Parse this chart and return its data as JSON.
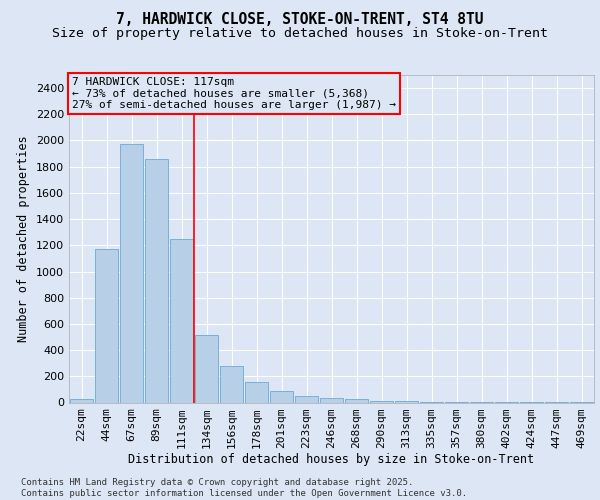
{
  "title_line1": "7, HARDWICK CLOSE, STOKE-ON-TRENT, ST4 8TU",
  "title_line2": "Size of property relative to detached houses in Stoke-on-Trent",
  "xlabel": "Distribution of detached houses by size in Stoke-on-Trent",
  "ylabel": "Number of detached properties",
  "categories": [
    "22sqm",
    "44sqm",
    "67sqm",
    "89sqm",
    "111sqm",
    "134sqm",
    "156sqm",
    "178sqm",
    "201sqm",
    "223sqm",
    "246sqm",
    "268sqm",
    "290sqm",
    "313sqm",
    "335sqm",
    "357sqm",
    "380sqm",
    "402sqm",
    "424sqm",
    "447sqm",
    "469sqm"
  ],
  "values": [
    25,
    1170,
    1970,
    1855,
    1245,
    515,
    275,
    155,
    90,
    50,
    38,
    30,
    15,
    8,
    4,
    3,
    2,
    2,
    2,
    2,
    2
  ],
  "bar_color": "#b8cfe8",
  "bar_edge_color": "#6aaad4",
  "bg_color": "#dce6f5",
  "grid_color": "#ffffff",
  "vline_x": 4.5,
  "vline_color": "red",
  "annotation_title": "7 HARDWICK CLOSE: 117sqm",
  "annotation_line1": "← 73% of detached houses are smaller (5,368)",
  "annotation_line2": "27% of semi-detached houses are larger (1,987) →",
  "annotation_box_edgecolor": "red",
  "footnote_line1": "Contains HM Land Registry data © Crown copyright and database right 2025.",
  "footnote_line2": "Contains public sector information licensed under the Open Government Licence v3.0.",
  "ylim": [
    0,
    2500
  ],
  "yticks": [
    0,
    200,
    400,
    600,
    800,
    1000,
    1200,
    1400,
    1600,
    1800,
    2000,
    2200,
    2400
  ],
  "title_fontsize": 10.5,
  "subtitle_fontsize": 9.5,
  "axis_label_fontsize": 8.5,
  "tick_fontsize": 8,
  "annotation_fontsize": 8,
  "footnote_fontsize": 6.5
}
